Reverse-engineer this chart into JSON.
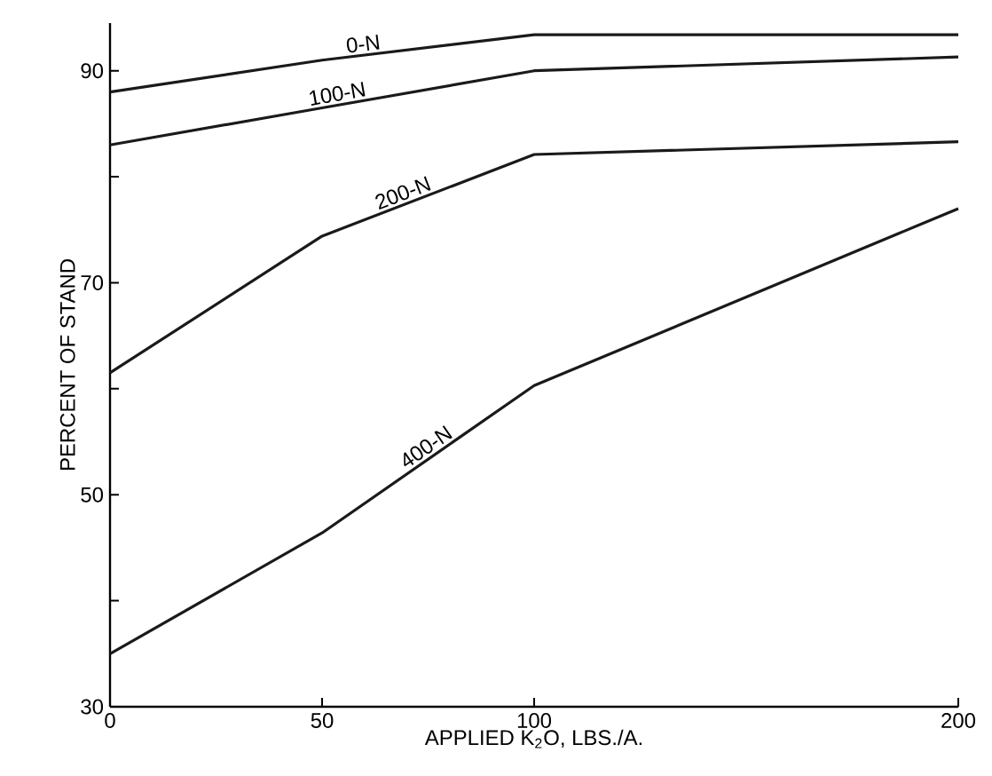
{
  "chart_data": {
    "type": "line",
    "xlabel": "APPLIED K$_{2}$O, LBS./A.",
    "ylabel": "PERCENT OF STAND",
    "xlim": [
      0,
      200
    ],
    "ylim": [
      30,
      94.5
    ],
    "xticks": [
      0,
      50,
      100,
      200
    ],
    "yticks": [
      30,
      {
        "value": 40,
        "label": null
      },
      50,
      {
        "value": 60,
        "label": null
      },
      70,
      {
        "value": 80,
        "label": null
      },
      90
    ],
    "grid": false,
    "legend": false,
    "marker": "none",
    "line_style": "solid",
    "x": [
      0,
      50,
      100,
      200
    ],
    "series": [
      {
        "name": "0-N",
        "color": "#1a1a1a",
        "values": [
          88,
          91,
          93.4,
          93.4
        ]
      },
      {
        "name": "100-N",
        "color": "#1a1a1a",
        "values": [
          83,
          86.5,
          90,
          91.3
        ]
      },
      {
        "name": "200-N",
        "color": "#1a1a1a",
        "values": [
          61.5,
          74.4,
          82.1,
          83.3
        ]
      },
      {
        "name": "400-N",
        "color": "#1a1a1a",
        "values": [
          35,
          46.4,
          60.3,
          77
        ]
      }
    ]
  }
}
